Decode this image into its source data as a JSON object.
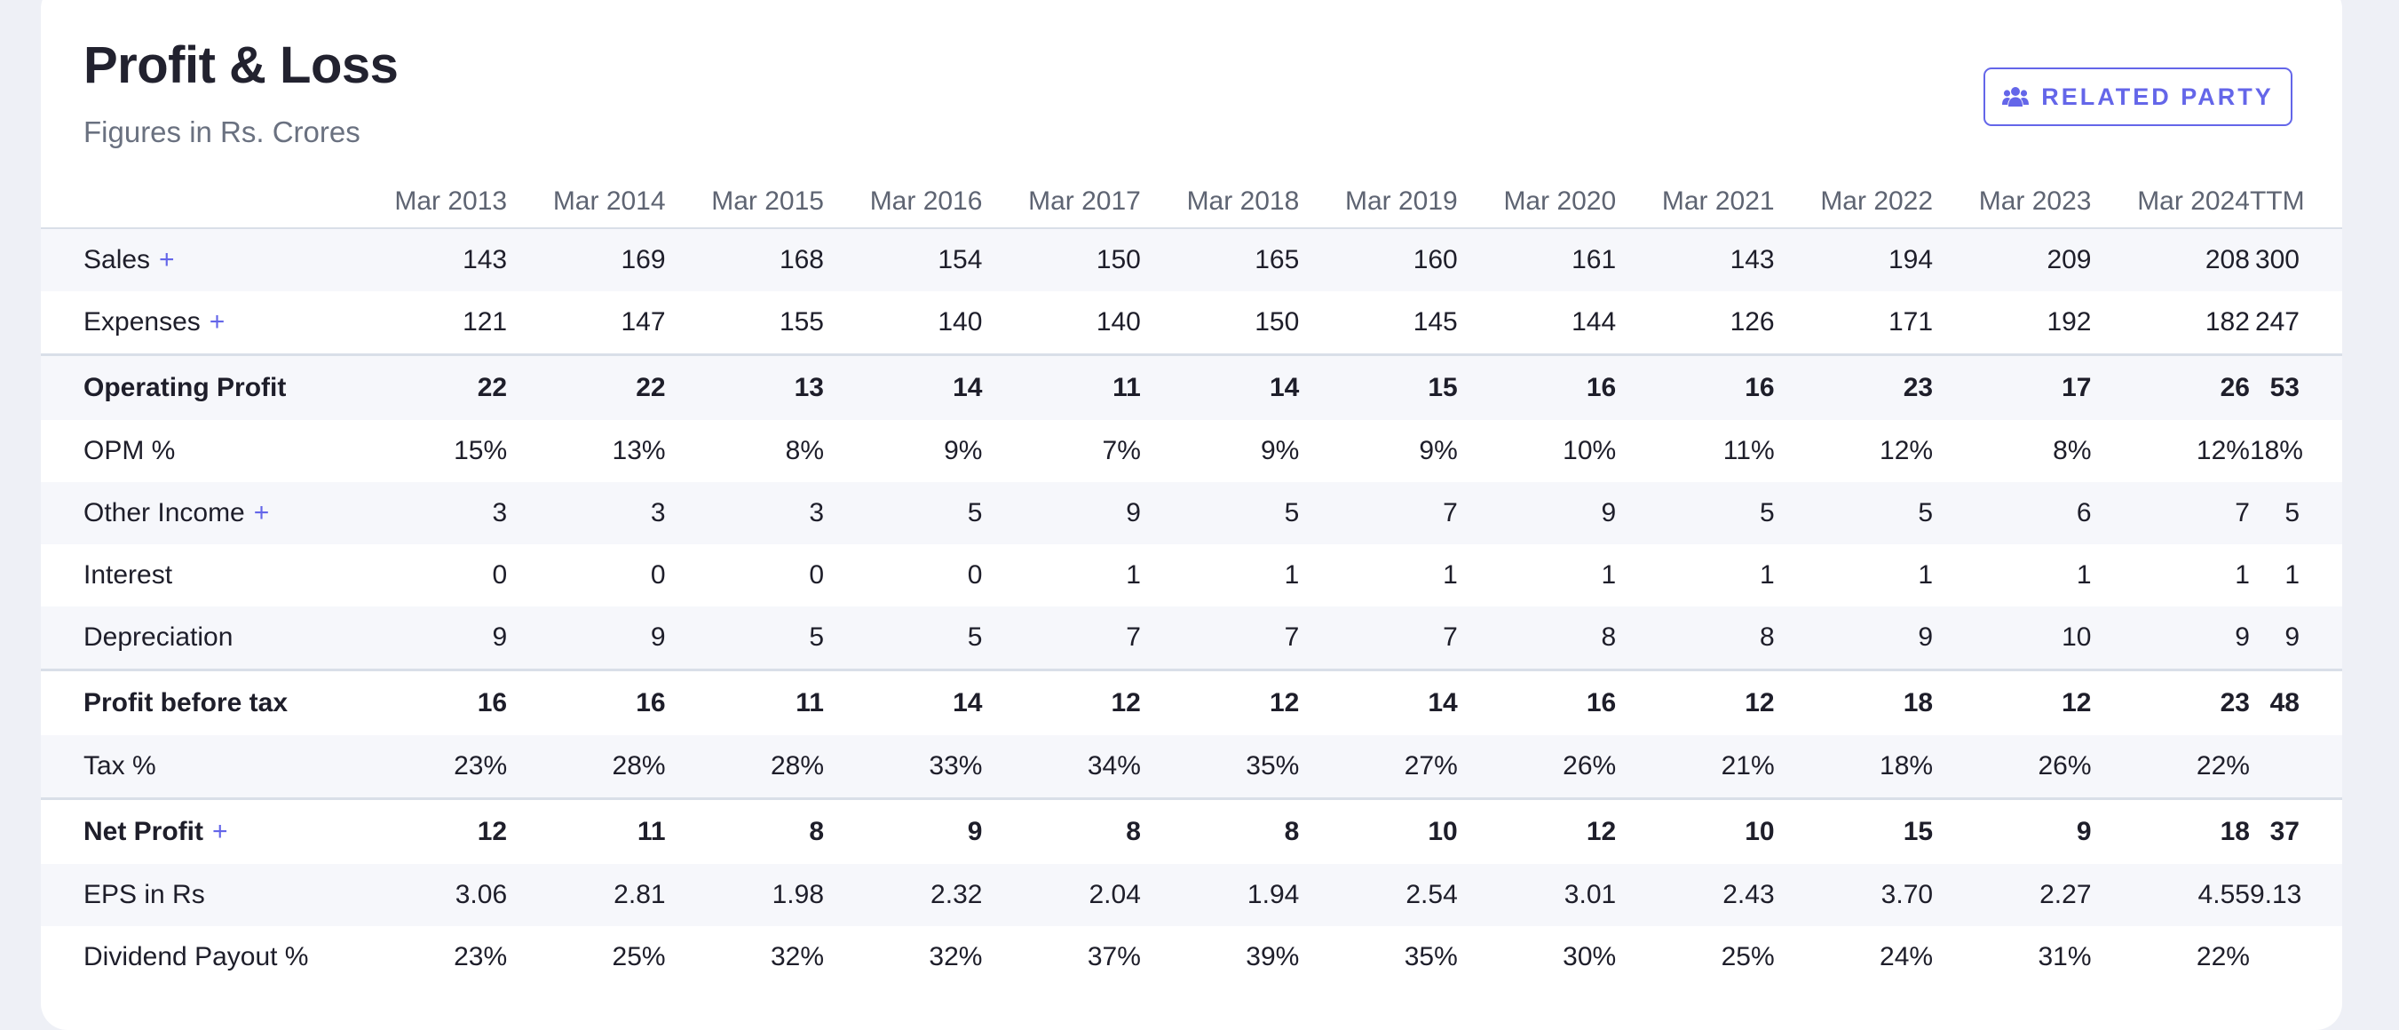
{
  "section": {
    "title": "Profit & Loss",
    "subtitle": "Figures in Rs. Crores",
    "related_party_label": "RELATED PARTY"
  },
  "table": {
    "columns": [
      "Mar 2013",
      "Mar 2014",
      "Mar 2015",
      "Mar 2016",
      "Mar 2017",
      "Mar 2018",
      "Mar 2019",
      "Mar 2020",
      "Mar 2021",
      "Mar 2022",
      "Mar 2023",
      "Mar 2024",
      "TTM"
    ],
    "rows": [
      {
        "label": "Sales",
        "plus": "+",
        "bold": false,
        "sep": false,
        "values": [
          "143",
          "169",
          "168",
          "154",
          "150",
          "165",
          "160",
          "161",
          "143",
          "194",
          "209",
          "208",
          "300"
        ]
      },
      {
        "label": "Expenses",
        "plus": "+",
        "bold": false,
        "sep": false,
        "values": [
          "121",
          "147",
          "155",
          "140",
          "140",
          "150",
          "145",
          "144",
          "126",
          "171",
          "192",
          "182",
          "247"
        ]
      },
      {
        "label": "Operating Profit",
        "plus": "",
        "bold": true,
        "sep": true,
        "values": [
          "22",
          "22",
          "13",
          "14",
          "11",
          "14",
          "15",
          "16",
          "16",
          "23",
          "17",
          "26",
          "53"
        ]
      },
      {
        "label": "OPM %",
        "plus": "",
        "bold": false,
        "sep": false,
        "values": [
          "15%",
          "13%",
          "8%",
          "9%",
          "7%",
          "9%",
          "9%",
          "10%",
          "11%",
          "12%",
          "8%",
          "12%",
          "18%"
        ]
      },
      {
        "label": "Other Income",
        "plus": "+",
        "bold": false,
        "sep": false,
        "values": [
          "3",
          "3",
          "3",
          "5",
          "9",
          "5",
          "7",
          "9",
          "5",
          "5",
          "6",
          "7",
          "5"
        ]
      },
      {
        "label": "Interest",
        "plus": "",
        "bold": false,
        "sep": false,
        "values": [
          "0",
          "0",
          "0",
          "0",
          "1",
          "1",
          "1",
          "1",
          "1",
          "1",
          "1",
          "1",
          "1"
        ]
      },
      {
        "label": "Depreciation",
        "plus": "",
        "bold": false,
        "sep": false,
        "values": [
          "9",
          "9",
          "5",
          "5",
          "7",
          "7",
          "7",
          "8",
          "8",
          "9",
          "10",
          "9",
          "9"
        ]
      },
      {
        "label": "Profit before tax",
        "plus": "",
        "bold": true,
        "sep": true,
        "values": [
          "16",
          "16",
          "11",
          "14",
          "12",
          "12",
          "14",
          "16",
          "12",
          "18",
          "12",
          "23",
          "48"
        ]
      },
      {
        "label": "Tax %",
        "plus": "",
        "bold": false,
        "sep": false,
        "values": [
          "23%",
          "28%",
          "28%",
          "33%",
          "34%",
          "35%",
          "27%",
          "26%",
          "21%",
          "18%",
          "26%",
          "22%",
          ""
        ]
      },
      {
        "label": "Net Profit",
        "plus": "+",
        "bold": true,
        "sep": true,
        "values": [
          "12",
          "11",
          "8",
          "9",
          "8",
          "8",
          "10",
          "12",
          "10",
          "15",
          "9",
          "18",
          "37"
        ]
      },
      {
        "label": "EPS in Rs",
        "plus": "",
        "bold": false,
        "sep": false,
        "values": [
          "3.06",
          "2.81",
          "1.98",
          "2.32",
          "2.04",
          "1.94",
          "2.54",
          "3.01",
          "2.43",
          "3.70",
          "2.27",
          "4.55",
          "9.13"
        ]
      },
      {
        "label": "Dividend Payout %",
        "plus": "",
        "bold": false,
        "sep": false,
        "values": [
          "23%",
          "25%",
          "32%",
          "32%",
          "37%",
          "39%",
          "35%",
          "30%",
          "25%",
          "24%",
          "31%",
          "22%",
          ""
        ]
      }
    ]
  },
  "colors": {
    "accent": "#6466e9",
    "page_background": "#eef0f6",
    "card_background": "#ffffff",
    "row_stripe": "#f6f7fb",
    "header_text": "#5e6472",
    "subtitle_text": "#6a7180",
    "divider": "#d9dfe8"
  },
  "icons": {
    "related_party": "users-group-icon",
    "expand": "plus-icon"
  }
}
